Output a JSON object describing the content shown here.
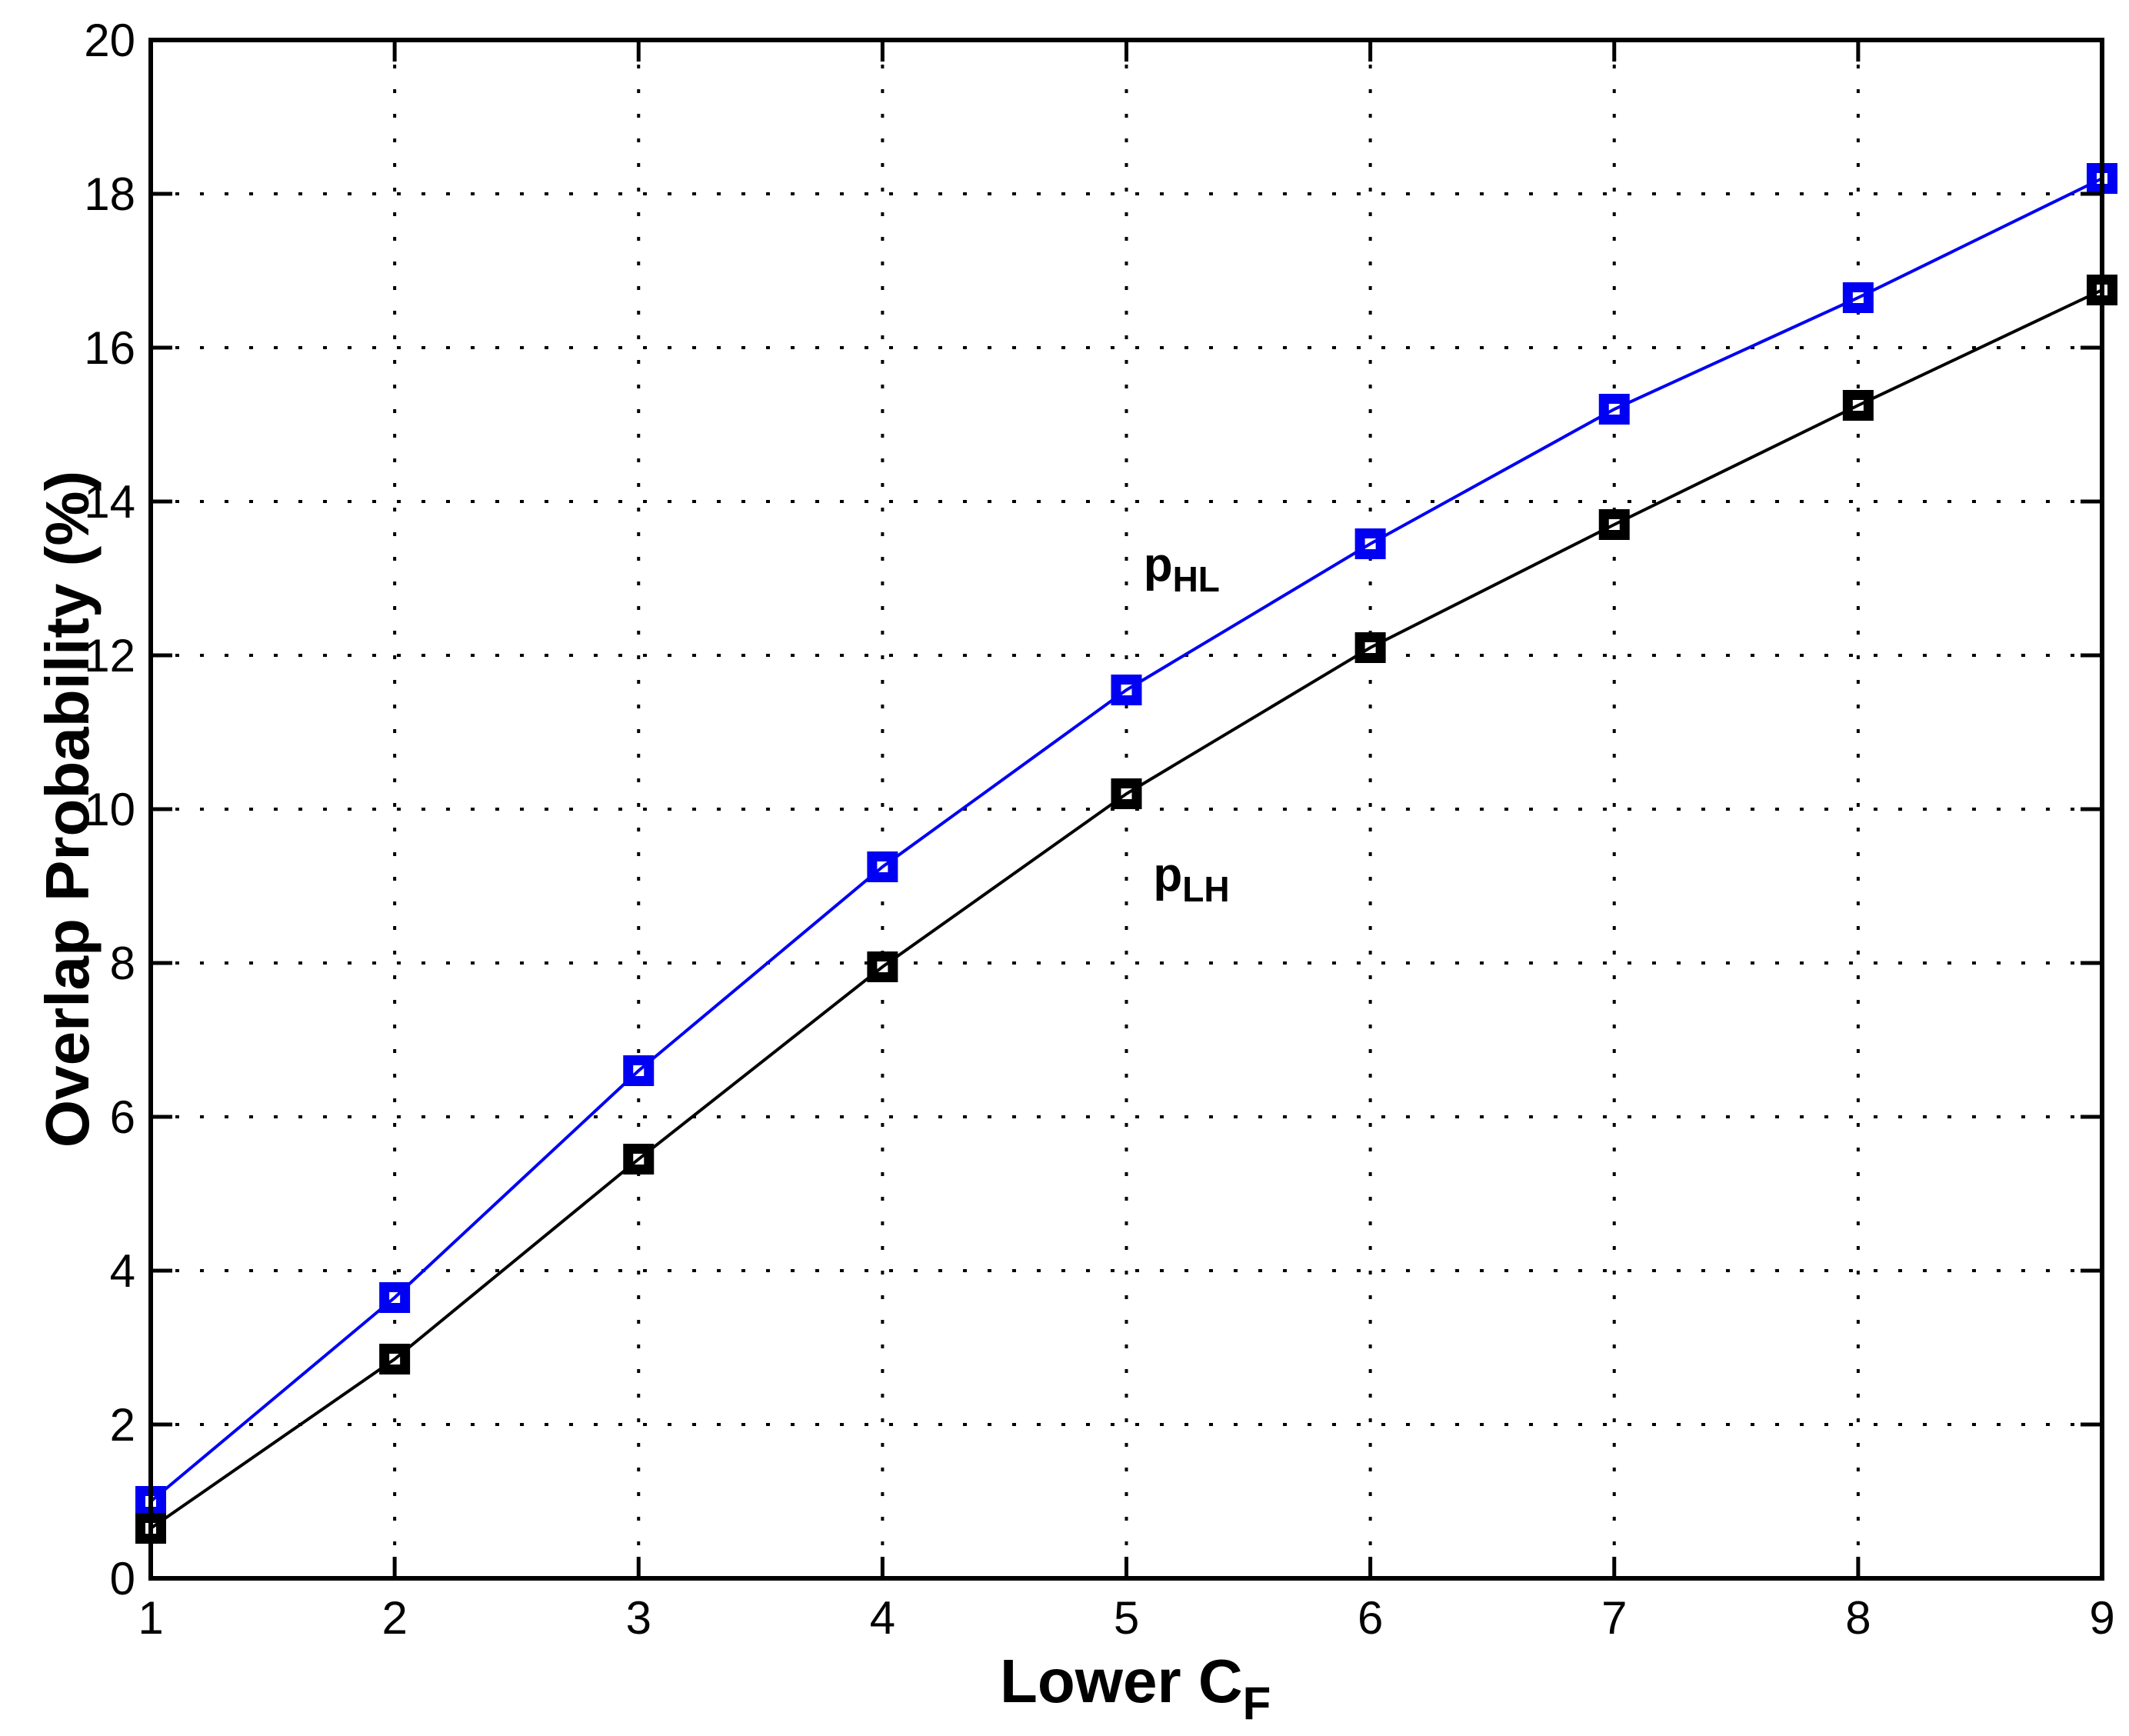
{
  "figure": {
    "background": "#ffffff",
    "axis_color": "#000000",
    "grid_color": "#000000",
    "tick_label_color": "#000000"
  },
  "chart_data": {
    "type": "line",
    "title": "",
    "xlabel_main": "Lower C",
    "xlabel_sub": "F",
    "ylabel": "Overlap Probability (%)",
    "x": [
      1,
      2,
      3,
      4,
      5,
      6,
      7,
      8,
      9
    ],
    "series": [
      {
        "name": "p_HL",
        "label_main": "p",
        "label_sub": "HL",
        "color": "#0000f2",
        "marker": "square",
        "values": [
          1.0,
          3.65,
          6.6,
          9.25,
          11.55,
          13.45,
          15.2,
          16.65,
          18.2
        ]
      },
      {
        "name": "p_LH",
        "label_main": "p",
        "label_sub": "LH",
        "color": "#000000",
        "marker": "square",
        "values": [
          0.65,
          2.85,
          5.45,
          7.95,
          10.2,
          12.1,
          13.7,
          15.25,
          16.75
        ]
      }
    ],
    "xlim": [
      1,
      9
    ],
    "ylim": [
      0,
      20
    ],
    "xticks": [
      1,
      2,
      3,
      4,
      5,
      6,
      7,
      8,
      9
    ],
    "yticks": [
      0,
      2,
      4,
      6,
      8,
      10,
      12,
      14,
      16,
      18,
      20
    ],
    "grid": "dotted",
    "legend_position": "none",
    "annotations": [
      {
        "series": "p_HL",
        "label_main": "p",
        "label_sub": "HL",
        "x": 5.07,
        "y": 12.97
      },
      {
        "series": "p_LH",
        "label_main": "p",
        "label_sub": "LH",
        "x": 5.11,
        "y": 8.94
      }
    ]
  }
}
